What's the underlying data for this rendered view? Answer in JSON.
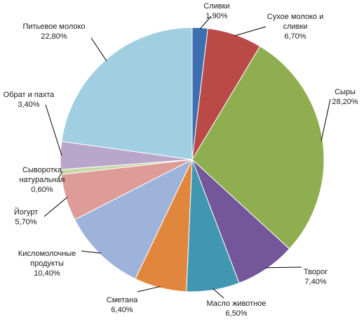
{
  "chart_data": {
    "type": "pie",
    "title": "",
    "start_angle_deg": 0,
    "direction": "clockwise",
    "label_format": "name + value% with comma decimal",
    "slices": [
      {
        "name_lines": [
          "Сливки"
        ],
        "value_text": "1,90%",
        "value": 1.9,
        "color": "#3e6fb0"
      },
      {
        "name_lines": [
          "Сухое молоко и",
          "сливки"
        ],
        "value_text": "6,70%",
        "value": 6.7,
        "color": "#b94a48"
      },
      {
        "name_lines": [
          "Сыры"
        ],
        "value_text": "28,20%",
        "value": 28.2,
        "color": "#8fae4f"
      },
      {
        "name_lines": [
          "Творог"
        ],
        "value_text": "7,40%",
        "value": 7.4,
        "color": "#74579a"
      },
      {
        "name_lines": [
          "Масло животное"
        ],
        "value_text": "6,50%",
        "value": 6.5,
        "color": "#4196b1"
      },
      {
        "name_lines": [
          "Сметана"
        ],
        "value_text": "6,40%",
        "value": 6.4,
        "color": "#e1873d"
      },
      {
        "name_lines": [
          "Кисломолочные",
          "продукты"
        ],
        "value_text": "10,40%",
        "value": 10.4,
        "color": "#9eb3da"
      },
      {
        "name_lines": [
          "Йогурт"
        ],
        "value_text": "5,70%",
        "value": 5.7,
        "color": "#de9c98"
      },
      {
        "name_lines": [
          "Сыворотка",
          "натуральная"
        ],
        "value_text": "0,60%",
        "value": 0.6,
        "color": "#c6d8a6"
      },
      {
        "name_lines": [
          "Обрат и пахта"
        ],
        "value_text": "3,40%",
        "value": 3.4,
        "color": "#b9a7cb"
      },
      {
        "name_lines": [
          "Питьевое молоко"
        ],
        "value_text": "22,80%",
        "value": 22.8,
        "color": "#9fcfe1"
      }
    ]
  }
}
